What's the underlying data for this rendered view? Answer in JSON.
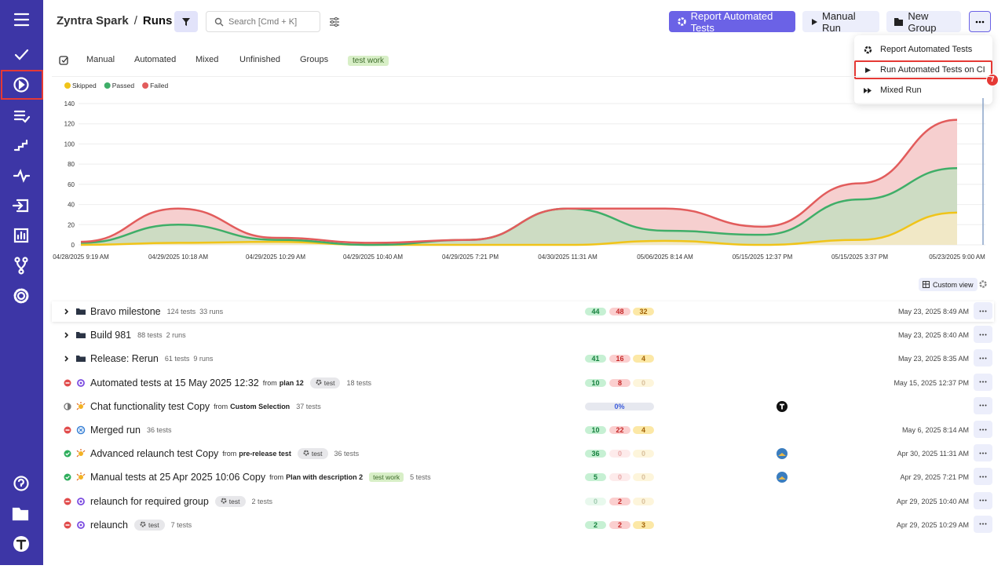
{
  "header": {
    "brand": "Zyntra Spark",
    "separator": "/",
    "title": "Runs",
    "search_placeholder": "Search [Cmd + K]",
    "buttons": [
      "Report Automated Tests",
      "Manual Run",
      "New Group"
    ]
  },
  "dropdown": {
    "items": [
      "Report Automated Tests",
      "Run Automated Tests on CI",
      "Mixed Run"
    ],
    "badge": "7"
  },
  "tabs": [
    "Manual",
    "Automated",
    "Mixed",
    "Unfinished",
    "Groups",
    "test work"
  ],
  "chart_data": {
    "type": "area",
    "stacked": true,
    "categories": [
      "04/28/2025 9:19 AM",
      "04/29/2025 10:18 AM",
      "04/29/2025 10:29 AM",
      "04/29/2025 10:40 AM",
      "04/29/2025 7:21 PM",
      "04/30/2025 11:31 AM",
      "05/06/2025 8:14 AM",
      "05/15/2025 12:37 PM",
      "05/15/2025 3:37 PM",
      "05/23/2025 9:00 AM"
    ],
    "series": [
      {
        "name": "Skipped",
        "color": "#f0c419",
        "fill": "#f1e8c6",
        "values": [
          0,
          2,
          3,
          0,
          0,
          0,
          4,
          0,
          5,
          32
        ]
      },
      {
        "name": "Passed",
        "color": "#3fae68",
        "fill": "#cddcc3",
        "values": [
          2,
          18,
          2,
          0,
          5,
          36,
          10,
          10,
          40,
          44
        ]
      },
      {
        "name": "Failed",
        "color": "#e25c5c",
        "fill": "#f6cfcf",
        "values": [
          1,
          16,
          2,
          2,
          0,
          0,
          22,
          8,
          16,
          48
        ]
      }
    ],
    "ylim": [
      0,
      140
    ],
    "yticks": [
      0,
      20,
      40,
      60,
      80,
      100,
      120,
      140
    ],
    "grid": true
  },
  "table": {
    "custom_view": "Custom view",
    "rows": [
      {
        "kind": "group",
        "name": "Bravo milestone",
        "tests": "124 tests",
        "runs": "33 runs",
        "passed": 44,
        "failed": 48,
        "skipped": 32,
        "date": "May 23, 2025 8:49 AM"
      },
      {
        "kind": "group",
        "name": "Build 981",
        "tests": "88 tests",
        "runs": "2 runs",
        "date": "May 23, 2025 8:40 AM"
      },
      {
        "kind": "group",
        "name": "Release: Rerun",
        "tests": "61 tests",
        "runs": "9 runs",
        "passed": 41,
        "failed": 16,
        "skipped": 4,
        "date": "May 23, 2025 8:35 AM"
      },
      {
        "kind": "run",
        "status": "failed",
        "icon": "automated",
        "name": "Automated tests at 15 May 2025 12:32",
        "from": "from",
        "source": "plan 12",
        "tag": "test",
        "tests": "18 tests",
        "passed": 10,
        "failed": 8,
        "skipped": 0,
        "date": "May 15, 2025 12:37 PM"
      },
      {
        "kind": "run",
        "status": "progress",
        "icon": "manual",
        "name": "Chat functionality test Copy",
        "from": "from",
        "source": "Custom Selection",
        "tests": "37 tests",
        "progress": "0%",
        "avatar": true
      },
      {
        "kind": "run",
        "status": "failed",
        "icon": "mixed",
        "name": "Merged run",
        "tests": "36 tests",
        "passed": 10,
        "failed": 22,
        "skipped": 4,
        "date": "May 6, 2025 8:14 AM"
      },
      {
        "kind": "run",
        "status": "passed",
        "icon": "manual",
        "name": "Advanced relaunch test Copy",
        "from": "from",
        "source": "pre-release test",
        "tag": "test",
        "tests": "36 tests",
        "passed": 36,
        "failed": 0,
        "skipped": 0,
        "avatar": true,
        "date": "Apr 30, 2025 11:31 AM"
      },
      {
        "kind": "run",
        "status": "passed",
        "icon": "manual",
        "name": "Manual tests at 25 Apr 2025 10:06 Copy",
        "from": "from",
        "source": "Plan with description 2",
        "tag_work": "test work",
        "tests": "5 tests",
        "passed": 5,
        "failed": 0,
        "skipped": 0,
        "avatar": true,
        "date": "Apr 29, 2025 7:21 PM"
      },
      {
        "kind": "run",
        "status": "failed",
        "icon": "automated",
        "name": "relaunch for required group",
        "tag": "test",
        "tests": "2 tests",
        "passed": 0,
        "failed": 2,
        "skipped": 0,
        "date": "Apr 29, 2025 10:40 AM"
      },
      {
        "kind": "run",
        "status": "failed",
        "icon": "automated",
        "name": "relaunch",
        "tag": "test",
        "tests": "7 tests",
        "passed": 2,
        "failed": 2,
        "skipped": 3,
        "date": "Apr 29, 2025 10:29 AM"
      }
    ]
  }
}
